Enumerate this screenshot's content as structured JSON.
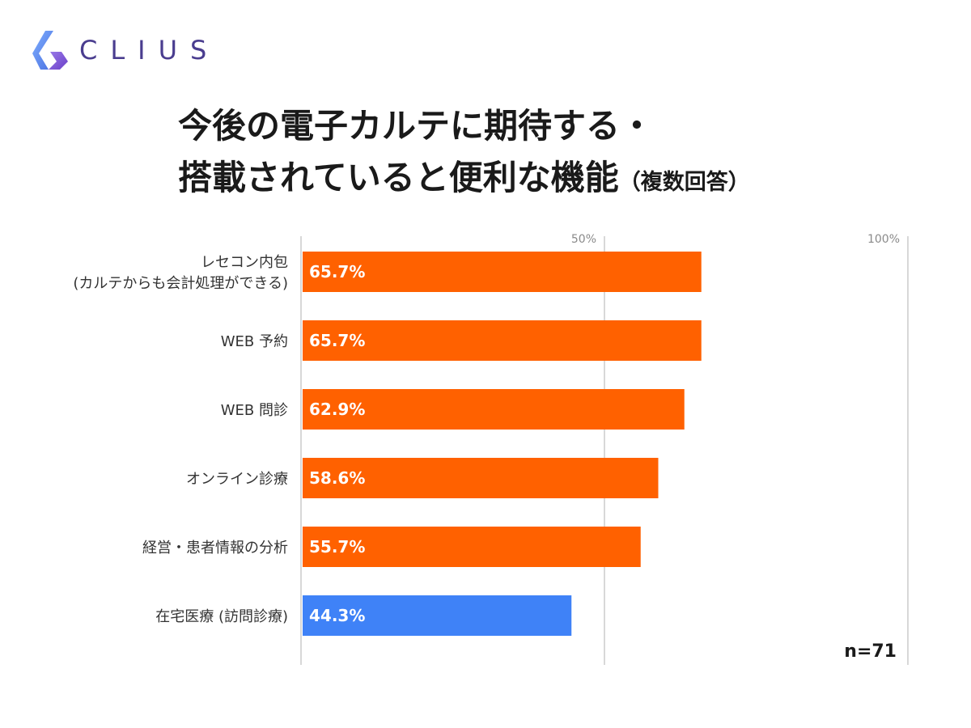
{
  "brand": {
    "name": "CLIUS"
  },
  "title": {
    "line1": "今後の電子カルテに期待する・",
    "line2": "搭載されていると便利な機能",
    "note": "（複数回答）"
  },
  "sample_size": "n=71",
  "colors": {
    "highlight": "#ff6100",
    "other": "#3f82f7",
    "axis": "#cccccc",
    "logo_left": "#5a8df0",
    "logo_right": "#7a4fd0"
  },
  "chart_data": {
    "type": "bar",
    "orientation": "horizontal",
    "categories": [
      [
        "レセコン内包",
        "(カルテからも会計処理ができる)"
      ],
      [
        "WEB 予約"
      ],
      [
        "WEB 問診"
      ],
      [
        "オンライン診療"
      ],
      [
        "経営・患者情報の分析"
      ],
      [
        "在宅医療 (訪問診療)"
      ]
    ],
    "values": [
      65.7,
      65.7,
      62.9,
      58.6,
      55.7,
      44.3
    ],
    "value_labels": [
      "65.7%",
      "65.7%",
      "62.9%",
      "58.6%",
      "55.7%",
      "44.3%"
    ],
    "bar_colors": [
      "#ff6100",
      "#ff6100",
      "#ff6100",
      "#ff6100",
      "#ff6100",
      "#3f82f7"
    ],
    "xlim": [
      0,
      100
    ],
    "ticks": [
      {
        "value": 50,
        "label": "50%"
      },
      {
        "value": 100,
        "label": "100%"
      }
    ],
    "grid": true,
    "legend": "none"
  }
}
